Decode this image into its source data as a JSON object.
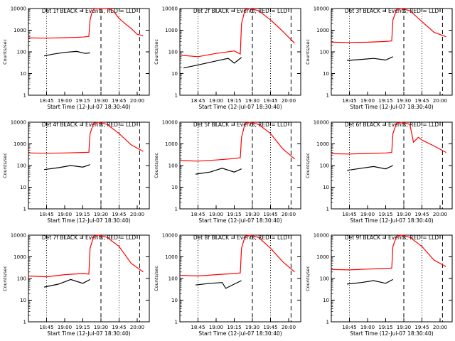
{
  "colors": {
    "background": "#ffffff",
    "axes": "#000000",
    "events": "#000000",
    "lld": "#ff0000"
  },
  "chart_data": [
    {
      "type": "line",
      "title": "Det 1f BLACK = Events, RED = LLD",
      "xlabel": "Start Time (12-Jul-07 18:30:40)",
      "ylabel": "Counts/sec",
      "x_tick_labels": [
        "18:45",
        "19:00",
        "19:15",
        "19:30",
        "19:45",
        "20:00"
      ],
      "y_tick_labels": [
        "1",
        "10",
        "100",
        "1000",
        "10000"
      ],
      "ylim": [
        1,
        10000
      ],
      "y_scale": "log",
      "grid": false,
      "series": [
        {
          "name": "Events",
          "color": "#000000",
          "x": [
            "18:43",
            "18:50",
            "19:00",
            "19:10",
            "19:17",
            "19:21"
          ],
          "y": [
            65,
            78,
            95,
            105,
            85,
            90
          ]
        },
        {
          "name": "LLD",
          "color": "#ff0000",
          "x": [
            "18:30",
            "18:45",
            "19:00",
            "19:15",
            "19:20",
            "19:21",
            "19:23",
            "19:25",
            "19:28",
            "19:35",
            "19:40",
            "19:45",
            "19:50",
            "19:55",
            "20:00",
            "20:05"
          ],
          "y": [
            440,
            430,
            450,
            480,
            520,
            3000,
            8000,
            10000,
            10000,
            10000,
            8000,
            3500,
            2000,
            1200,
            650,
            550
          ]
        }
      ]
    },
    {
      "type": "line",
      "title": "Det 2f BLACK = Events, RED = LLD",
      "xlabel": "Start Time (12-Jul-07 18:30:40)",
      "ylabel": "Counts/sec",
      "x_tick_labels": [
        "18:45",
        "19:00",
        "19:15",
        "19:30",
        "19:45",
        "20:00"
      ],
      "y_tick_labels": [
        "1",
        "10",
        "100",
        "1000",
        "10000"
      ],
      "ylim": [
        1,
        10000
      ],
      "y_scale": "log",
      "grid": false,
      "series": [
        {
          "name": "Events",
          "color": "#000000",
          "x": [
            "18:33",
            "18:45",
            "19:00",
            "19:10",
            "19:15",
            "19:21"
          ],
          "y": [
            18,
            25,
            38,
            50,
            30,
            55
          ]
        },
        {
          "name": "LLD",
          "color": "#ff0000",
          "x": [
            "18:30",
            "18:45",
            "19:00",
            "19:15",
            "19:20",
            "19:21",
            "19:24",
            "19:28",
            "19:35",
            "19:45",
            "19:55",
            "20:05"
          ],
          "y": [
            70,
            60,
            85,
            110,
            80,
            2000,
            9000,
            10000,
            8000,
            3000,
            900,
            250
          ]
        }
      ]
    },
    {
      "type": "line",
      "title": "Det 3f BLACK = Events, RED = LLD",
      "xlabel": "Start Time (12-Jul-07 18:30:40)",
      "ylabel": "Counts/sec",
      "x_tick_labels": [
        "18:45",
        "19:00",
        "19:15",
        "19:30",
        "19:45",
        "20:00"
      ],
      "y_tick_labels": [
        "1",
        "10",
        "100",
        "1000",
        "10000"
      ],
      "ylim": [
        1,
        10000
      ],
      "y_scale": "log",
      "grid": false,
      "series": [
        {
          "name": "Events",
          "color": "#000000",
          "x": [
            "18:43",
            "18:55",
            "19:05",
            "19:15",
            "19:21"
          ],
          "y": [
            40,
            45,
            50,
            42,
            60
          ]
        },
        {
          "name": "LLD",
          "color": "#ff0000",
          "x": [
            "18:30",
            "18:45",
            "19:00",
            "19:15",
            "19:20",
            "19:21",
            "19:24",
            "19:28",
            "19:35",
            "19:45",
            "19:55",
            "20:05"
          ],
          "y": [
            280,
            270,
            280,
            300,
            320,
            3000,
            9000,
            10000,
            8000,
            2500,
            800,
            500
          ]
        }
      ]
    },
    {
      "type": "line",
      "title": "Det 4f BLACK = Events, RED = LLD",
      "xlabel": "Start Time (12-Jul-07 18:30:40)",
      "ylabel": "Counts/sec",
      "x_tick_labels": [
        "18:45",
        "19:00",
        "19:15",
        "19:30",
        "19:45",
        "20:00"
      ],
      "y_tick_labels": [
        "1",
        "10",
        "100",
        "1000",
        "10000"
      ],
      "ylim": [
        1,
        10000
      ],
      "y_scale": "log",
      "grid": false,
      "series": [
        {
          "name": "Events",
          "color": "#000000",
          "x": [
            "18:43",
            "18:55",
            "19:05",
            "19:15",
            "19:21"
          ],
          "y": [
            65,
            80,
            100,
            85,
            110
          ]
        },
        {
          "name": "LLD",
          "color": "#ff0000",
          "x": [
            "18:30",
            "18:45",
            "19:00",
            "19:15",
            "19:20",
            "19:21",
            "19:24",
            "19:28",
            "19:35",
            "19:45",
            "19:55",
            "20:05"
          ],
          "y": [
            380,
            370,
            380,
            400,
            410,
            3000,
            9000,
            10000,
            8000,
            3000,
            900,
            450
          ]
        }
      ]
    },
    {
      "type": "line",
      "title": "Det 5f BLACK = Events, RED = LLD",
      "xlabel": "Start Time (12-Jul-07 18:30:40)",
      "ylabel": "Counts/sec",
      "x_tick_labels": [
        "18:45",
        "19:00",
        "19:15",
        "19:30",
        "19:45",
        "20:00"
      ],
      "y_tick_labels": [
        "1",
        "10",
        "100",
        "1000",
        "10000"
      ],
      "ylim": [
        1,
        10000
      ],
      "y_scale": "log",
      "grid": false,
      "series": [
        {
          "name": "Events",
          "color": "#000000",
          "x": [
            "18:43",
            "18:55",
            "19:05",
            "19:15",
            "19:21"
          ],
          "y": [
            40,
            50,
            75,
            50,
            70
          ]
        },
        {
          "name": "LLD",
          "color": "#ff0000",
          "x": [
            "18:30",
            "18:45",
            "19:00",
            "19:15",
            "19:20",
            "19:21",
            "19:24",
            "19:28",
            "19:35",
            "19:45",
            "19:55",
            "20:05"
          ],
          "y": [
            170,
            160,
            180,
            210,
            230,
            2000,
            9000,
            10000,
            8000,
            3000,
            600,
            200
          ]
        }
      ]
    },
    {
      "type": "line",
      "title": "Det 6f BLACK = Events, RED = LLD",
      "xlabel": "Start Time (12-Jul-07 18:30:40)",
      "ylabel": "Counts/sec",
      "x_tick_labels": [
        "18:45",
        "19:00",
        "19:15",
        "19:30",
        "19:45",
        "20:00"
      ],
      "y_tick_labels": [
        "1",
        "10",
        "100",
        "1000",
        "10000"
      ],
      "ylim": [
        1,
        10000
      ],
      "y_scale": "log",
      "grid": false,
      "series": [
        {
          "name": "Events",
          "color": "#000000",
          "x": [
            "18:43",
            "18:55",
            "19:05",
            "19:15",
            "19:21"
          ],
          "y": [
            60,
            75,
            90,
            70,
            100
          ]
        },
        {
          "name": "LLD",
          "color": "#ff0000",
          "x": [
            "18:30",
            "18:45",
            "19:00",
            "19:15",
            "19:20",
            "19:21",
            "19:24",
            "19:28",
            "19:35",
            "19:38",
            "19:42",
            "19:45",
            "19:55",
            "20:05"
          ],
          "y": [
            350,
            340,
            360,
            380,
            400,
            3000,
            9000,
            10000,
            8000,
            1200,
            2000,
            1500,
            800,
            400
          ]
        }
      ]
    },
    {
      "type": "line",
      "title": "Det 7f BLACK = Events, RED = LLD",
      "xlabel": "Start Time (12-Jul-07 18:30:40)",
      "ylabel": "Counts/sec",
      "x_tick_labels": [
        "18:45",
        "19:00",
        "19:15",
        "19:30",
        "19:45",
        "20:00"
      ],
      "y_tick_labels": [
        "1",
        "10",
        "100",
        "1000",
        "10000"
      ],
      "ylim": [
        1,
        10000
      ],
      "y_scale": "log",
      "grid": false,
      "series": [
        {
          "name": "Events",
          "color": "#000000",
          "x": [
            "18:43",
            "18:55",
            "19:05",
            "19:15",
            "19:21"
          ],
          "y": [
            40,
            55,
            90,
            60,
            90
          ]
        },
        {
          "name": "LLD",
          "color": "#ff0000",
          "x": [
            "18:30",
            "18:45",
            "19:00",
            "19:15",
            "19:20",
            "19:21",
            "19:24",
            "19:28",
            "19:35",
            "19:45",
            "19:55",
            "20:05"
          ],
          "y": [
            130,
            120,
            150,
            170,
            160,
            2500,
            9000,
            10000,
            8000,
            3000,
            500,
            200
          ]
        }
      ]
    },
    {
      "type": "line",
      "title": "Det 8f BLACK = Events, RED = LLD",
      "xlabel": "Start Time (12-Jul-07 18:30:40)",
      "ylabel": "Counts/sec",
      "x_tick_labels": [
        "18:45",
        "19:00",
        "19:15",
        "19:30",
        "19:45",
        "20:00"
      ],
      "y_tick_labels": [
        "1",
        "10",
        "100",
        "1000",
        "10000"
      ],
      "ylim": [
        1,
        10000
      ],
      "y_scale": "log",
      "grid": false,
      "series": [
        {
          "name": "Events",
          "color": "#000000",
          "x": [
            "18:43",
            "18:55",
            "19:05",
            "19:08",
            "19:15",
            "19:21"
          ],
          "y": [
            50,
            60,
            65,
            35,
            55,
            80
          ]
        },
        {
          "name": "LLD",
          "color": "#ff0000",
          "x": [
            "18:30",
            "18:45",
            "19:00",
            "19:15",
            "19:20",
            "19:21",
            "19:24",
            "19:28",
            "19:35",
            "19:45",
            "19:55",
            "20:05"
          ],
          "y": [
            140,
            130,
            150,
            170,
            180,
            2500,
            9000,
            10000,
            8000,
            2500,
            600,
            200
          ]
        }
      ]
    },
    {
      "type": "line",
      "title": "Det 9f BLACK = Events, RED = LLD",
      "xlabel": "Start Time (12-Jul-07 18:30:40)",
      "ylabel": "Counts/sec",
      "x_tick_labels": [
        "18:45",
        "19:00",
        "19:15",
        "19:30",
        "19:45",
        "20:00"
      ],
      "y_tick_labels": [
        "1",
        "10",
        "100",
        "1000",
        "10000"
      ],
      "ylim": [
        1,
        10000
      ],
      "y_scale": "log",
      "grid": false,
      "series": [
        {
          "name": "Events",
          "color": "#000000",
          "x": [
            "18:43",
            "18:55",
            "19:05",
            "19:15",
            "19:21"
          ],
          "y": [
            55,
            65,
            80,
            60,
            90
          ]
        },
        {
          "name": "LLD",
          "color": "#ff0000",
          "x": [
            "18:30",
            "18:45",
            "19:00",
            "19:15",
            "19:20",
            "19:21",
            "19:24",
            "19:28",
            "19:35",
            "19:45",
            "19:55",
            "20:05"
          ],
          "y": [
            260,
            250,
            270,
            290,
            300,
            3000,
            9000,
            10000,
            8000,
            3000,
            700,
            350
          ]
        }
      ]
    }
  ]
}
